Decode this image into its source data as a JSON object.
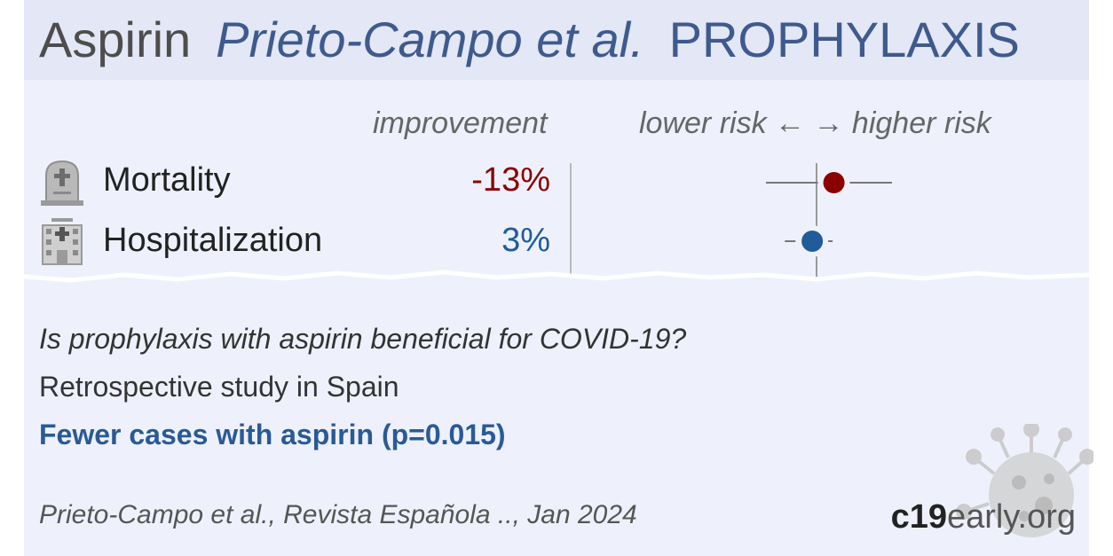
{
  "header": {
    "drug": "Aspirin",
    "author": "Prieto-Campo et al.",
    "study_type": "PROPHYLAXIS"
  },
  "columns": {
    "improvement": "improvement",
    "risk_axis": "lower risk ← → higher risk"
  },
  "chart_data": {
    "type": "forest",
    "null_value": 1.0,
    "rows": [
      {
        "label": "Mortality",
        "improvement": "-13%",
        "estimate": 1.13,
        "ci": [
          0.7,
          1.7
        ],
        "color": "#8b0000",
        "icon": "tombstone-icon"
      },
      {
        "label": "Hospitalization",
        "improvement": "3%",
        "estimate": 0.97,
        "ci": [
          0.8,
          1.12
        ],
        "color": "#1f5c99",
        "icon": "hospital-icon"
      }
    ]
  },
  "summary": {
    "question": "Is prophylaxis with aspirin beneficial for COVID-19?",
    "design": "Retrospective study in Spain",
    "result": "Fewer cases with aspirin (p=0.015)"
  },
  "citation": "Prieto-Campo et al., Revista Española .., Jan 2024",
  "brand": {
    "bold": "c19",
    "rest": "early.org"
  },
  "colors": {
    "header_bg": "#e3e7f6",
    "card_bg": "#eef1fb",
    "accent": "#3f5a8c"
  }
}
